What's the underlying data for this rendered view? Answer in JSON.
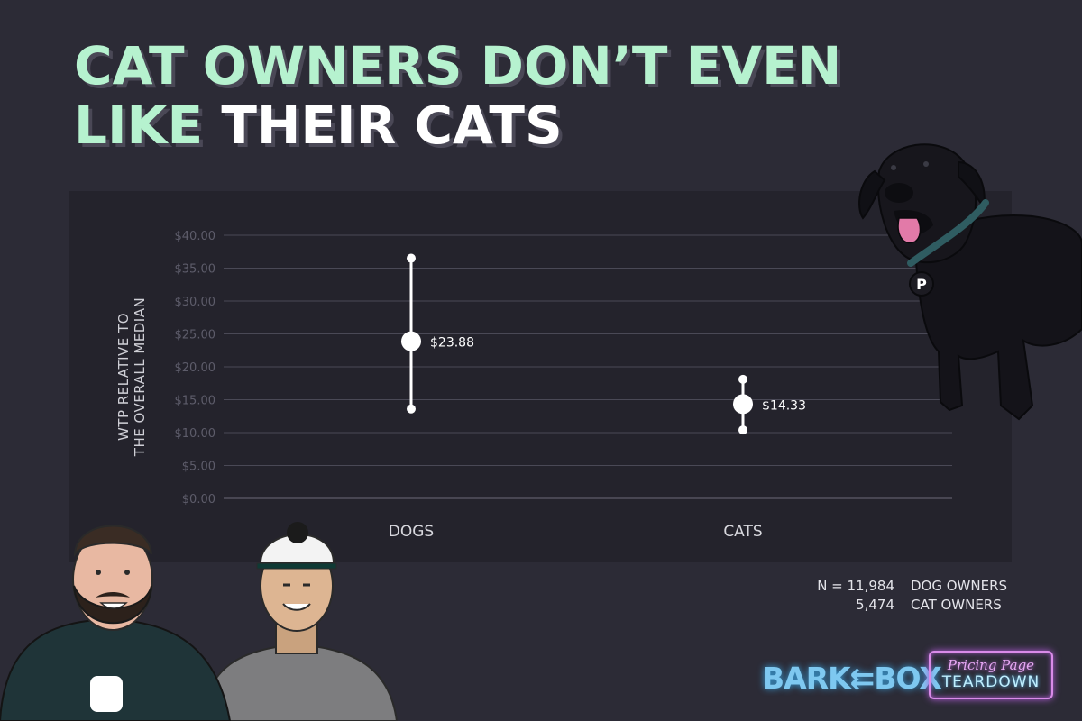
{
  "title": {
    "line1_mint": "CAT OWNERS",
    "line1_rest": "DON’T EVEN",
    "line2_mint": "LIKE",
    "line2_white": "THEIR CATS"
  },
  "chart_data": {
    "type": "range",
    "ylabel_line1": "WTP RELATIVE TO",
    "ylabel_line2": "THE OVERALL MEDIAN",
    "ylim": [
      0,
      40
    ],
    "yticks": [
      0,
      5,
      10,
      15,
      20,
      25,
      30,
      35,
      40
    ],
    "ytick_labels": [
      "$0.00",
      "$5.00",
      "$10.00",
      "$15.00",
      "$20.00",
      "$25.00",
      "$30.00",
      "$35.00",
      "$40.00"
    ],
    "grid": true,
    "categories": [
      "DOGS",
      "CATS"
    ],
    "points": [
      {
        "category": "DOGS",
        "value": 23.88,
        "low": 13.6,
        "high": 36.5,
        "label": "$23.88"
      },
      {
        "category": "CATS",
        "value": 14.33,
        "low": 10.4,
        "high": 18.1,
        "label": "$14.33"
      }
    ]
  },
  "sample": {
    "n_prefix": "N = 11,984",
    "dog_label": "DOG OWNERS",
    "cat_count": "5,474",
    "cat_label": "CAT OWNERS"
  },
  "logos": {
    "barkbox": "BARK⇇BOX",
    "teardown_script": "Pricing Page",
    "teardown_main": "TEARDOWN",
    "badge_letter": "P"
  },
  "colors": {
    "background": "#2c2b36",
    "panel": "#24232c",
    "mint": "#b6f2cf",
    "grid": "#4a4956",
    "marker": "#ffffff"
  }
}
